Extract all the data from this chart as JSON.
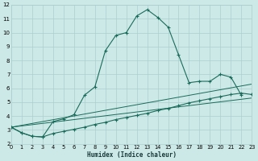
{
  "xlabel": "Humidex (Indice chaleur)",
  "xlim": [
    0,
    23
  ],
  "ylim": [
    2,
    12
  ],
  "yticks": [
    2,
    3,
    4,
    5,
    6,
    7,
    8,
    9,
    10,
    11,
    12
  ],
  "xticks": [
    0,
    1,
    2,
    3,
    4,
    5,
    6,
    7,
    8,
    9,
    10,
    11,
    12,
    13,
    14,
    15,
    16,
    17,
    18,
    19,
    20,
    21,
    22,
    23
  ],
  "bg_color": "#cce9e7",
  "grid_color": "#aacfcd",
  "line_color": "#1a6b5a",
  "line1_x": [
    0,
    1,
    2,
    3,
    4,
    5,
    6,
    7,
    8,
    9,
    10,
    11,
    12,
    13,
    14,
    15,
    16,
    17,
    18,
    19,
    20,
    21,
    22
  ],
  "line1_y": [
    3.2,
    2.8,
    2.55,
    2.5,
    3.6,
    3.8,
    4.1,
    5.5,
    6.1,
    8.7,
    9.8,
    10.0,
    11.2,
    11.65,
    11.1,
    10.4,
    8.4,
    6.4,
    6.5,
    6.5,
    7.0,
    6.8,
    5.5
  ],
  "line2_x": [
    0,
    1,
    2,
    3,
    4,
    5,
    6,
    7,
    8,
    9,
    10,
    11,
    12,
    13,
    14,
    15,
    16,
    17,
    18,
    19,
    20,
    21,
    22,
    23
  ],
  "line2_y": [
    3.2,
    2.8,
    2.55,
    2.5,
    2.75,
    2.9,
    3.05,
    3.2,
    3.4,
    3.55,
    3.75,
    3.9,
    4.05,
    4.2,
    4.4,
    4.55,
    4.75,
    4.95,
    5.1,
    5.25,
    5.4,
    5.55,
    5.65,
    5.55
  ],
  "line3_x": [
    0,
    23
  ],
  "line3_y": [
    3.2,
    5.3
  ],
  "line4_x": [
    0,
    23
  ],
  "line4_y": [
    3.2,
    6.3
  ]
}
